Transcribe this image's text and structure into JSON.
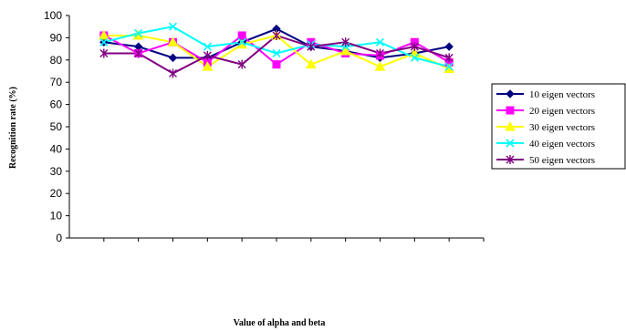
{
  "chart_data": {
    "type": "line",
    "title": "",
    "xlabel": "Value of alpha and beta",
    "ylabel": "Recognition rate (%)",
    "ylim": [
      0,
      100
    ],
    "yticks": [
      "0",
      "10",
      "20",
      "30",
      "40",
      "50",
      "60",
      "70",
      "80",
      "90",
      "100"
    ],
    "x_count": 12,
    "grid": false,
    "legend_position": "right",
    "series": [
      {
        "name": "10 eigen vectors",
        "color": "#000080",
        "marker": "diamond",
        "values": [
          88,
          86,
          81,
          81,
          88,
          94,
          86,
          84,
          81,
          83,
          86,
          null
        ]
      },
      {
        "name": "20 eigen vectors",
        "color": "#ff00ff",
        "marker": "square",
        "values": [
          91,
          83,
          88,
          79,
          91,
          78,
          88,
          83,
          82,
          88,
          79,
          null
        ]
      },
      {
        "name": "30 eigen vectors",
        "color": "#ffff00",
        "marker": "triangle",
        "values": [
          91,
          91,
          88,
          77,
          87,
          91,
          78,
          84,
          77,
          83,
          76,
          null
        ]
      },
      {
        "name": "40 eigen vectors",
        "color": "#00ffff",
        "marker": "x",
        "values": [
          88,
          92,
          95,
          86,
          88,
          83,
          87,
          86,
          88,
          81,
          77,
          null
        ]
      },
      {
        "name": "50 eigen vectors",
        "color": "#800080",
        "marker": "star",
        "values": [
          83,
          83,
          74,
          82,
          78,
          91,
          86,
          88,
          83,
          86,
          81,
          null
        ]
      }
    ]
  }
}
